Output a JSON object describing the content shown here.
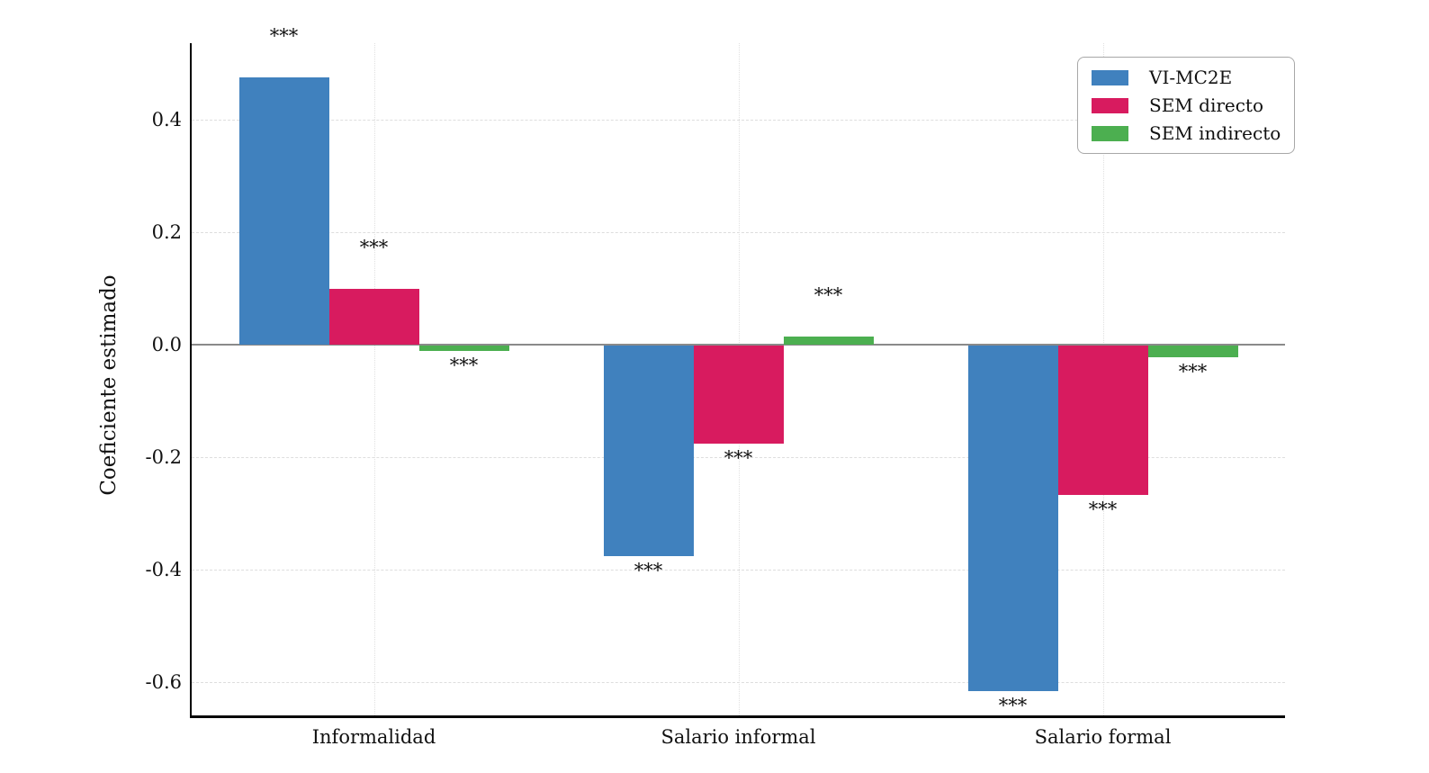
{
  "chart_data": {
    "type": "bar",
    "title": "",
    "xlabel": "",
    "ylabel": "Coeficiente estimado",
    "categories": [
      "Informalidad",
      "Salario informal",
      "Salario formal"
    ],
    "series": [
      {
        "name": "VI-MC2E",
        "color": "#4081BE",
        "values": [
          0.475,
          -0.375,
          -0.615
        ],
        "significance": [
          "***",
          "***",
          "***"
        ]
      },
      {
        "name": "SEM directo",
        "color": "#D81B5F",
        "values": [
          0.1,
          -0.175,
          -0.265
        ],
        "significance": [
          "***",
          "***",
          "***"
        ]
      },
      {
        "name": "SEM indirecto",
        "color": "#4CAF50",
        "values": [
          -0.01,
          0.015,
          -0.02
        ],
        "significance": [
          "***",
          "***",
          "***"
        ]
      }
    ],
    "y_ticks": [
      0.4,
      0.2,
      0.0,
      -0.2,
      -0.4,
      -0.6
    ],
    "ylim": [
      -0.66,
      0.54
    ],
    "grid": true,
    "legend_position": "upper right"
  }
}
